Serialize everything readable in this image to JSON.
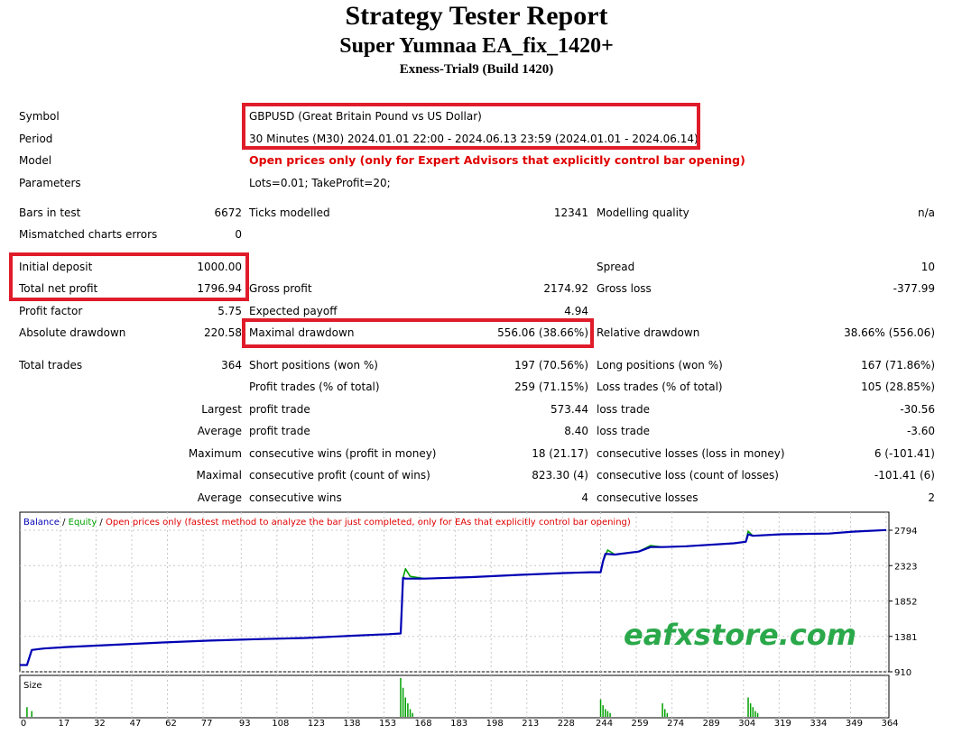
{
  "header": {
    "title": "Strategy Tester Report",
    "ea_name": "Super Yumnaa EA_fix_1420+",
    "account": "Exness-Trial9 (Build 1420)"
  },
  "info": {
    "symbol_label": "Symbol",
    "symbol_value": "GBPUSD (Great Britain Pound vs US Dollar)",
    "period_label": "Period",
    "period_value": "30 Minutes (M30) 2024.01.01 22:00 - 2024.06.13 23:59 (2024.01.01 - 2024.06.14)",
    "model_label": "Model",
    "model_value": "Open prices only (only for Expert Advisors that explicitly control bar opening)",
    "params_label": "Parameters",
    "params_value": "Lots=0.01; TakeProfit=20;"
  },
  "stats": {
    "bars_label": "Bars in test",
    "bars_value": "6672",
    "ticks_label": "Ticks modelled",
    "ticks_value": "12341",
    "quality_label": "Modelling quality",
    "quality_value": "n/a",
    "mismatch_label": "Mismatched charts errors",
    "mismatch_value": "0",
    "deposit_label": "Initial deposit",
    "deposit_value": "1000.00",
    "spread_label": "Spread",
    "spread_value": "10",
    "net_label": "Total net profit",
    "net_value": "1796.94",
    "gross_profit_label": "Gross profit",
    "gross_profit_value": "2174.92",
    "gross_loss_label": "Gross loss",
    "gross_loss_value": "-377.99",
    "pf_label": "Profit factor",
    "pf_value": "5.75",
    "payoff_label": "Expected payoff",
    "payoff_value": "4.94",
    "abs_dd_label": "Absolute drawdown",
    "abs_dd_value": "220.58",
    "max_dd_label": "Maximal drawdown",
    "max_dd_value": "556.06 (38.66%)",
    "rel_dd_label": "Relative drawdown",
    "rel_dd_value": "38.66% (556.06)",
    "trades_label": "Total trades",
    "trades_value": "364",
    "short_label": "Short positions (won %)",
    "short_value": "197 (70.56%)",
    "long_label": "Long positions (won %)",
    "long_value": "167 (71.86%)",
    "ptrades_label": "Profit trades (% of total)",
    "ptrades_value": "259 (71.15%)",
    "ltrades_label": "Loss trades (% of total)",
    "ltrades_value": "105 (28.85%)",
    "largest_label": "Largest",
    "largest_profit_label": "profit trade",
    "largest_profit_value": "573.44",
    "largest_loss_label": "loss trade",
    "largest_loss_value": "-30.56",
    "average_label": "Average",
    "average_profit_label": "profit trade",
    "average_profit_value": "8.40",
    "average_loss_label": "loss trade",
    "average_loss_value": "-3.60",
    "maximum_label": "Maximum",
    "max_wins_label": "consecutive wins (profit in money)",
    "max_wins_value": "18 (21.17)",
    "max_losses_label": "consecutive losses (loss in money)",
    "max_losses_value": "6 (-101.41)",
    "maximal_label": "Maximal",
    "maximal_profit_label": "consecutive profit (count of wins)",
    "maximal_profit_value": "823.30 (4)",
    "maximal_loss_label": "consecutive loss (count of losses)",
    "maximal_loss_value": "-101.41 (6)",
    "avg2_label": "Average",
    "avg_wins_label": "consecutive wins",
    "avg_wins_value": "4",
    "avg_losses_label": "consecutive losses",
    "avg_losses_value": "2"
  },
  "colors": {
    "balance": "#0000b4",
    "equity": "#00a000",
    "highlight_box": "#e01c2a",
    "red_text": "#e00000",
    "watermark": "#2aa84a"
  },
  "watermark": "eafxstore.com",
  "chart_data": {
    "type": "line",
    "legend": [
      {
        "text": "Balance",
        "color": "#0000b4"
      },
      {
        "text": " / ",
        "color": "#000000"
      },
      {
        "text": "Equity",
        "color": "#00a000"
      },
      {
        "text": " / ",
        "color": "#000000"
      },
      {
        "text": "Open prices only (fastest method to analyze the bar just completed, only for EAs that explicitly control bar opening)",
        "color": "#e00000"
      }
    ],
    "y_ticks": [
      2794,
      2323,
      1852,
      1381,
      910
    ],
    "ylim": [
      910,
      2794
    ],
    "xlim": [
      0,
      364
    ],
    "x_ticks": [
      0,
      17,
      32,
      47,
      62,
      77,
      93,
      108,
      123,
      138,
      153,
      168,
      183,
      198,
      213,
      228,
      244,
      259,
      274,
      289,
      304,
      319,
      334,
      349,
      364
    ],
    "series": [
      {
        "name": "Balance",
        "color": "#0000b4",
        "x": [
          0,
          3,
          5,
          10,
          20,
          40,
          60,
          80,
          100,
          120,
          140,
          150,
          155,
          160,
          161,
          162,
          170,
          190,
          210,
          230,
          240,
          244,
          245,
          246,
          250,
          260,
          265,
          270,
          280,
          300,
          305,
          306,
          308,
          320,
          340,
          350,
          364
        ],
        "y": [
          1000,
          1000,
          1200,
          1220,
          1240,
          1270,
          1300,
          1325,
          1345,
          1360,
          1390,
          1405,
          1410,
          1420,
          2160,
          2150,
          2150,
          2170,
          2200,
          2225,
          2235,
          2235,
          2380,
          2480,
          2470,
          2510,
          2570,
          2570,
          2580,
          2620,
          2640,
          2740,
          2720,
          2740,
          2750,
          2775,
          2796
        ]
      },
      {
        "name": "Equity",
        "color": "#00a000",
        "x": [
          0,
          3,
          5,
          10,
          20,
          40,
          60,
          80,
          100,
          120,
          140,
          150,
          155,
          160,
          161,
          162,
          164,
          170,
          190,
          210,
          230,
          240,
          244,
          245,
          247,
          250,
          260,
          265,
          270,
          280,
          300,
          305,
          306,
          308,
          320,
          340,
          350,
          364
        ],
        "y": [
          1000,
          1000,
          1200,
          1220,
          1240,
          1270,
          1300,
          1325,
          1345,
          1360,
          1390,
          1405,
          1410,
          1420,
          2160,
          2280,
          2180,
          2150,
          2170,
          2200,
          2225,
          2235,
          2235,
          2380,
          2530,
          2470,
          2510,
          2590,
          2570,
          2580,
          2620,
          2640,
          2780,
          2720,
          2740,
          2750,
          2775,
          2796
        ]
      }
    ],
    "size_panel": {
      "label": "Size",
      "color": "#00a000",
      "x": [
        3,
        5,
        160,
        161,
        162,
        163,
        164,
        165,
        244,
        245,
        246,
        247,
        248,
        270,
        271,
        272,
        306,
        307,
        308,
        309,
        310
      ],
      "h": [
        0.25,
        0.15,
        1.0,
        0.75,
        0.5,
        0.35,
        0.2,
        0.1,
        0.45,
        0.3,
        0.2,
        0.15,
        0.1,
        0.35,
        0.2,
        0.1,
        0.5,
        0.35,
        0.25,
        0.15,
        0.1
      ]
    }
  }
}
